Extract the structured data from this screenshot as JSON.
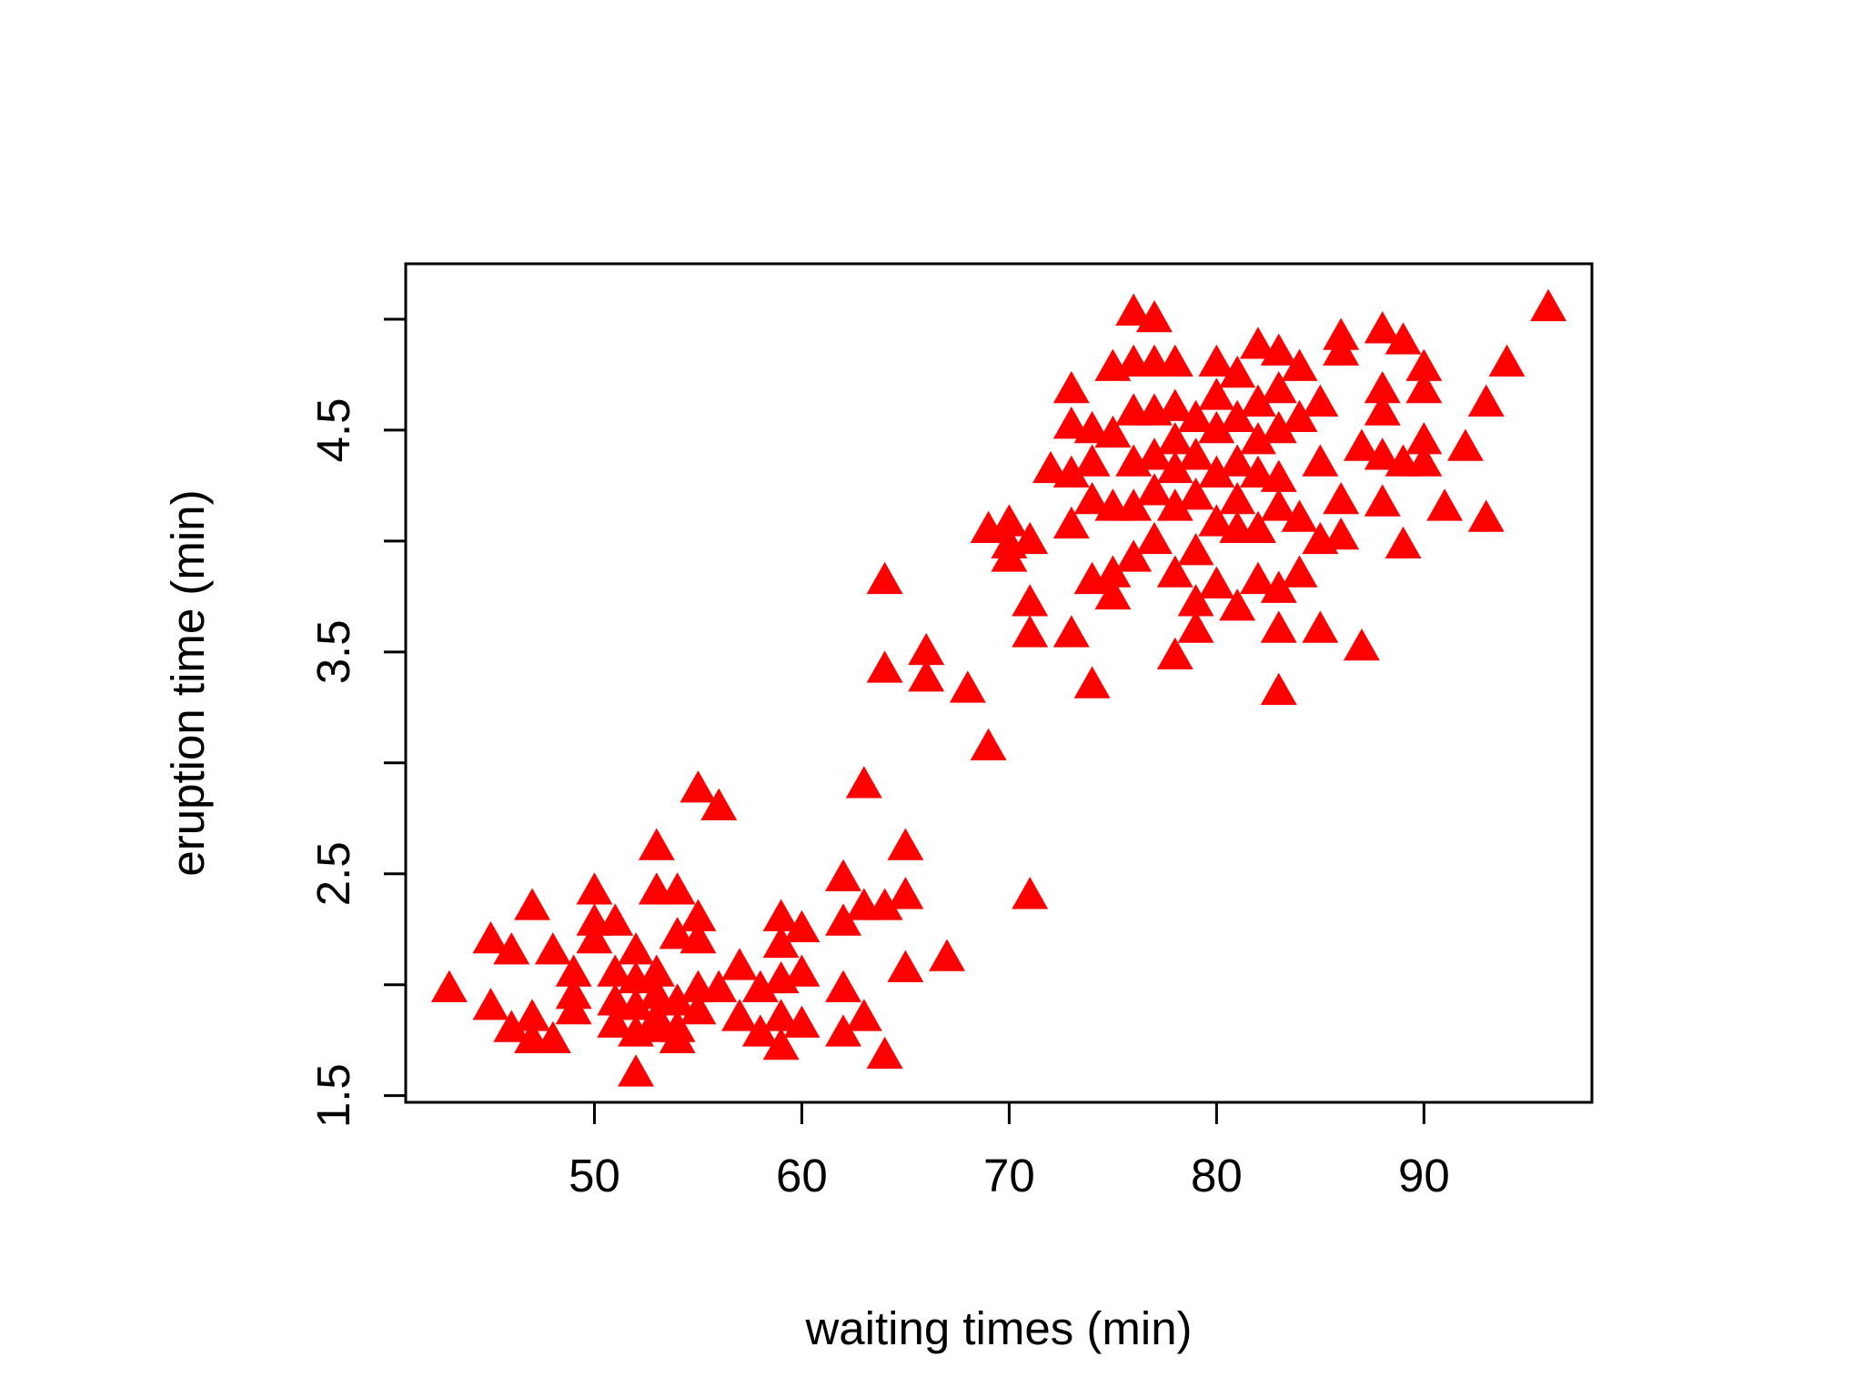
{
  "chart_data": {
    "type": "scatter",
    "title": "",
    "xlabel": "waiting times (min)",
    "ylabel": "eruption time (min)",
    "xlim": [
      40.9,
      98.1
    ],
    "ylim": [
      1.47,
      5.25
    ],
    "xticks": [
      50,
      60,
      70,
      80,
      90
    ],
    "xtick_labels": [
      "50",
      "60",
      "70",
      "80",
      "90"
    ],
    "yticks": [
      1.5,
      2.0,
      2.5,
      3.0,
      3.5,
      4.0,
      4.5,
      5.0
    ],
    "ytick_labels": [
      "1.5",
      "",
      "2.5",
      "",
      "3.5",
      "",
      "4.5",
      ""
    ],
    "marker": "triangle",
    "marker_color": "#ff0000",
    "grid": false,
    "legend": "none",
    "series": [
      {
        "points": [
          [
            43,
            1.98
          ],
          [
            45,
            2.2
          ],
          [
            45,
            1.9
          ],
          [
            46,
            1.8
          ],
          [
            46,
            2.15
          ],
          [
            47,
            2.35
          ],
          [
            47,
            1.75
          ],
          [
            47,
            1.85
          ],
          [
            48,
            2.15
          ],
          [
            48,
            1.75
          ],
          [
            49,
            2.05
          ],
          [
            49,
            1.95
          ],
          [
            49,
            1.88
          ],
          [
            50,
            2.42
          ],
          [
            50,
            2.28
          ],
          [
            50,
            2.2
          ],
          [
            51,
            2.28
          ],
          [
            51,
            2.05
          ],
          [
            51,
            1.92
          ],
          [
            51,
            1.82
          ],
          [
            52,
            2.15
          ],
          [
            52,
            2.02
          ],
          [
            52,
            1.9
          ],
          [
            52,
            1.78
          ],
          [
            52,
            1.6
          ],
          [
            53,
            2.62
          ],
          [
            53,
            2.42
          ],
          [
            53,
            2.05
          ],
          [
            53,
            1.95
          ],
          [
            53,
            1.85
          ],
          [
            53,
            1.8
          ],
          [
            54,
            2.42
          ],
          [
            54,
            2.22
          ],
          [
            54,
            1.92
          ],
          [
            54,
            1.8
          ],
          [
            54,
            1.75
          ],
          [
            55,
            2.88
          ],
          [
            55,
            2.3
          ],
          [
            55,
            2.2
          ],
          [
            55,
            1.98
          ],
          [
            55,
            1.88
          ],
          [
            56,
            2.8
          ],
          [
            56,
            1.98
          ],
          [
            57,
            2.08
          ],
          [
            57,
            1.85
          ],
          [
            58,
            1.98
          ],
          [
            58,
            1.78
          ],
          [
            59,
            2.3
          ],
          [
            59,
            2.18
          ],
          [
            59,
            2.02
          ],
          [
            59,
            1.85
          ],
          [
            59,
            1.72
          ],
          [
            60,
            2.25
          ],
          [
            60,
            2.05
          ],
          [
            60,
            1.82
          ],
          [
            62,
            2.48
          ],
          [
            62,
            2.28
          ],
          [
            62,
            1.98
          ],
          [
            62,
            1.78
          ],
          [
            63,
            2.9
          ],
          [
            63,
            2.35
          ],
          [
            63,
            1.85
          ],
          [
            64,
            3.82
          ],
          [
            64,
            3.42
          ],
          [
            64,
            2.35
          ],
          [
            64,
            1.68
          ],
          [
            65,
            2.62
          ],
          [
            65,
            2.4
          ],
          [
            65,
            2.07
          ],
          [
            66,
            3.5
          ],
          [
            66,
            3.38
          ],
          [
            67,
            2.12
          ],
          [
            68,
            3.33
          ],
          [
            69,
            4.05
          ],
          [
            69,
            3.07
          ],
          [
            70,
            4.08
          ],
          [
            70,
            3.98
          ],
          [
            70,
            3.92
          ],
          [
            71,
            4.0
          ],
          [
            71,
            3.72
          ],
          [
            71,
            3.58
          ],
          [
            71,
            2.4
          ],
          [
            72,
            4.32
          ],
          [
            73,
            4.68
          ],
          [
            73,
            4.52
          ],
          [
            73,
            4.3
          ],
          [
            73,
            4.07
          ],
          [
            73,
            3.58
          ],
          [
            74,
            4.5
          ],
          [
            74,
            4.35
          ],
          [
            74,
            4.18
          ],
          [
            74,
            3.82
          ],
          [
            74,
            3.35
          ],
          [
            75,
            4.78
          ],
          [
            75,
            4.48
          ],
          [
            75,
            4.15
          ],
          [
            75,
            3.85
          ],
          [
            75,
            3.75
          ],
          [
            76,
            5.03
          ],
          [
            76,
            4.8
          ],
          [
            76,
            4.58
          ],
          [
            76,
            4.35
          ],
          [
            76,
            4.15
          ],
          [
            76,
            3.92
          ],
          [
            77,
            5.0
          ],
          [
            77,
            4.8
          ],
          [
            77,
            4.58
          ],
          [
            77,
            4.38
          ],
          [
            77,
            4.22
          ],
          [
            77,
            4.0
          ],
          [
            78,
            4.8
          ],
          [
            78,
            4.6
          ],
          [
            78,
            4.45
          ],
          [
            78,
            4.32
          ],
          [
            78,
            4.15
          ],
          [
            78,
            3.85
          ],
          [
            78,
            3.48
          ],
          [
            79,
            4.55
          ],
          [
            79,
            4.38
          ],
          [
            79,
            4.2
          ],
          [
            79,
            3.95
          ],
          [
            79,
            3.72
          ],
          [
            79,
            3.6
          ],
          [
            80,
            4.8
          ],
          [
            80,
            4.65
          ],
          [
            80,
            4.5
          ],
          [
            80,
            4.3
          ],
          [
            80,
            4.08
          ],
          [
            80,
            3.8
          ],
          [
            81,
            4.75
          ],
          [
            81,
            4.55
          ],
          [
            81,
            4.35
          ],
          [
            81,
            4.18
          ],
          [
            81,
            4.05
          ],
          [
            81,
            3.7
          ],
          [
            82,
            4.88
          ],
          [
            82,
            4.62
          ],
          [
            82,
            4.45
          ],
          [
            82,
            4.3
          ],
          [
            82,
            4.05
          ],
          [
            82,
            3.82
          ],
          [
            83,
            4.85
          ],
          [
            83,
            4.68
          ],
          [
            83,
            4.5
          ],
          [
            83,
            4.28
          ],
          [
            83,
            4.15
          ],
          [
            83,
            3.78
          ],
          [
            83,
            3.6
          ],
          [
            83,
            3.32
          ],
          [
            84,
            4.78
          ],
          [
            84,
            4.55
          ],
          [
            84,
            4.1
          ],
          [
            84,
            3.85
          ],
          [
            85,
            4.62
          ],
          [
            85,
            4.35
          ],
          [
            85,
            4.0
          ],
          [
            85,
            3.6
          ],
          [
            86,
            4.92
          ],
          [
            86,
            4.85
          ],
          [
            86,
            4.18
          ],
          [
            86,
            4.02
          ],
          [
            87,
            4.42
          ],
          [
            87,
            3.52
          ],
          [
            88,
            4.95
          ],
          [
            88,
            4.68
          ],
          [
            88,
            4.58
          ],
          [
            88,
            4.38
          ],
          [
            88,
            4.17
          ],
          [
            89,
            4.9
          ],
          [
            89,
            4.35
          ],
          [
            89,
            3.98
          ],
          [
            90,
            4.78
          ],
          [
            90,
            4.68
          ],
          [
            90,
            4.45
          ],
          [
            90,
            4.35
          ],
          [
            92,
            4.42
          ],
          [
            91,
            4.15
          ],
          [
            93,
            4.62
          ],
          [
            93,
            4.1
          ],
          [
            94,
            4.8
          ],
          [
            96,
            5.05
          ]
        ]
      }
    ]
  }
}
